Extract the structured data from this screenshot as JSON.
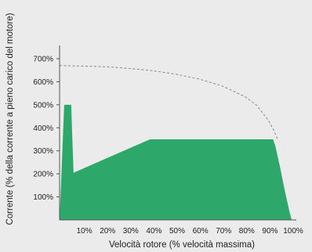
{
  "chart_data": {
    "type": "area",
    "title": "",
    "xlabel": "Velocità rotore (% velocità massima)",
    "ylabel": "Corrente (% della corrente a pieno carico del motore)",
    "xlim": [
      0,
      100
    ],
    "ylim": [
      0,
      700
    ],
    "x_ticks": [
      {
        "value": 10,
        "label": "10%"
      },
      {
        "value": 20,
        "label": "20%"
      },
      {
        "value": 30,
        "label": "30%"
      },
      {
        "value": 40,
        "label": "40%"
      },
      {
        "value": 50,
        "label": "50%"
      },
      {
        "value": 60,
        "label": "60%"
      },
      {
        "value": 70,
        "label": "70%"
      },
      {
        "value": 80,
        "label": "80%"
      },
      {
        "value": 90,
        "label": "90%"
      },
      {
        "value": 100,
        "label": "100%"
      }
    ],
    "y_ticks": [
      {
        "value": 100,
        "label": "100%"
      },
      {
        "value": 200,
        "label": "200%"
      },
      {
        "value": 300,
        "label": "300%"
      },
      {
        "value": 400,
        "label": "400%"
      },
      {
        "value": 500,
        "label": "500%"
      },
      {
        "value": 600,
        "label": "600%"
      },
      {
        "value": 700,
        "label": "700%"
      }
    ],
    "grid": false,
    "series": [
      {
        "style": "filled-area",
        "color": "#2ea86a",
        "points": [
          [
            0,
            0
          ],
          [
            0,
            0
          ],
          [
            2,
            500
          ],
          [
            5,
            500
          ],
          [
            6,
            205
          ],
          [
            39,
            350
          ],
          [
            92,
            350
          ],
          [
            93,
            320
          ],
          [
            95,
            230
          ],
          [
            97,
            130
          ],
          [
            99,
            40
          ],
          [
            100,
            0
          ]
        ]
      },
      {
        "style": "dashed-line",
        "color": "#888888",
        "points": [
          [
            0,
            670
          ],
          [
            10,
            668
          ],
          [
            20,
            665
          ],
          [
            30,
            658
          ],
          [
            40,
            648
          ],
          [
            50,
            633
          ],
          [
            60,
            612
          ],
          [
            70,
            582
          ],
          [
            80,
            535
          ],
          [
            85,
            497
          ],
          [
            90,
            432
          ],
          [
            92,
            395
          ],
          [
            94,
            350
          ]
        ]
      }
    ],
    "colors": {
      "fill": "#2ea86a",
      "background": "#ebebeb",
      "axis": "#555555",
      "dash": "#888888",
      "text": "#222222"
    }
  }
}
